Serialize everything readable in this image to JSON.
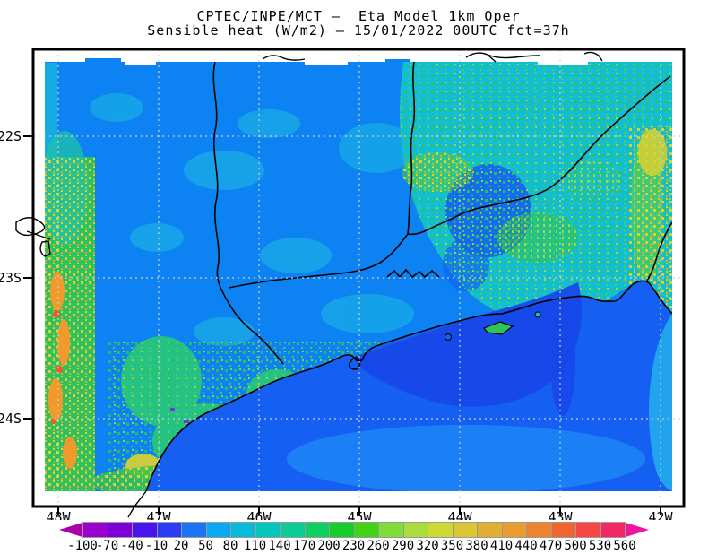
{
  "title": {
    "line1": "CPTEC/INPE/MCT –  Eta Model 1km Oper",
    "line2": "Sensible heat (W/m2) – 15/01/2022 00UTC fct=37h"
  },
  "axes": {
    "lat": [
      {
        "label": "22S"
      },
      {
        "label": "23S"
      },
      {
        "label": "24S"
      }
    ],
    "lon": [
      {
        "label": "48W"
      },
      {
        "label": "47W"
      },
      {
        "label": "46W"
      },
      {
        "label": "45W"
      },
      {
        "label": "44W"
      },
      {
        "label": "43W"
      },
      {
        "label": "42W"
      }
    ]
  },
  "colorbar": {
    "labels": [
      "-100",
      "-70",
      "-40",
      "-10",
      "20",
      "50",
      "80",
      "110",
      "140",
      "170",
      "200",
      "230",
      "260",
      "290",
      "320",
      "350",
      "380",
      "410",
      "440",
      "470",
      "500",
      "530",
      "560"
    ],
    "segment_colors": [
      "#9a00cd",
      "#7d00d9",
      "#4a14ee",
      "#2b3cf5",
      "#1b74f7",
      "#0aa7f2",
      "#06bbd9",
      "#05c6ba",
      "#0bcb96",
      "#0cd05f",
      "#17cc2b",
      "#40d316",
      "#7edd37",
      "#abdc3e",
      "#ccd932",
      "#dcc631",
      "#dfae32",
      "#eb9c31",
      "#ef8430",
      "#f1642e",
      "#f74643",
      "#f32765"
    ],
    "arrow_left_color": "#aa01aa",
    "arrow_right_color": "#f0139b",
    "border_color": "#9a9a9a"
  },
  "map": {
    "colors": {
      "land_base": "#0d82f2",
      "ocean_base": "#1560f2",
      "ocean_dark": "#1847e9",
      "ocean_light": "#1b82f6",
      "ocean_right_band": "#21a3ee",
      "land_teal": "#12bdd6",
      "land_cyan_patch": "#18a7e8",
      "green_band": "#2fc45a",
      "green_blob": "#27c97e",
      "yellow_patch": "#ddd22f",
      "orange_patch": "#ef9a2b",
      "hot_spot": "#f25b2d",
      "valley_blue": "#1365f2",
      "purple_speck": "#7a35d5",
      "coast": "#000000",
      "grid": "#ccd2d8"
    }
  },
  "chart_data": {
    "type": "heatmap",
    "title": "CPTEC/INPE/MCT –  Eta Model 1km Oper",
    "subtitle": "Sensible heat (W/m2) – 15/01/2022 00UTC fct=37h",
    "variable": "Sensible heat",
    "units": "W/m2",
    "model": "Eta Model 1km Oper",
    "institution": "CPTEC/INPE/MCT",
    "valid_datetime": "15/01/2022 00UTC",
    "forecast_hour": "fct=37h",
    "x_tick_labels": [
      "48W",
      "47W",
      "46W",
      "45W",
      "44W",
      "43W",
      "42W"
    ],
    "y_tick_labels": [
      "22S",
      "23S",
      "24S"
    ],
    "grid": true,
    "legend_position": "bottom",
    "levels": [
      -100,
      -70,
      -40,
      -10,
      20,
      50,
      80,
      110,
      140,
      170,
      200,
      230,
      260,
      290,
      320,
      350,
      380,
      410,
      440,
      470,
      500,
      530,
      560
    ],
    "palette": [
      "#9a00cd",
      "#7d00d9",
      "#4a14ee",
      "#2b3cf5",
      "#1b74f7",
      "#0aa7f2",
      "#06bbd9",
      "#05c6ba",
      "#0bcb96",
      "#0cd05f",
      "#17cc2b",
      "#40d316",
      "#7edd37",
      "#abdc3e",
      "#ccd932",
      "#dcc631",
      "#dfae32",
      "#eb9c31",
      "#ef8430",
      "#f1642e",
      "#f74643",
      "#f32765"
    ],
    "regions_read_from_map": [
      {
        "area": "Atlantic ocean southeast of coastline",
        "approx_value_range": [
          20,
          80
        ]
      },
      {
        "area": "ocean band along far right edge (42W)",
        "approx_value_range": [
          50,
          110
        ]
      },
      {
        "area": "inland northwest plateau (blue)",
        "approx_value_range": [
          50,
          110
        ]
      },
      {
        "area": "eastern highlands 44W-42W (cyan/teal with green speckles)",
        "approx_value_range": [
          110,
          260
        ]
      },
      {
        "area": "far-east column near 42W (yellow-green patches)",
        "approx_value_range": [
          230,
          380
        ]
      },
      {
        "area": "western strip near 48W-47.5W (green/yellow/orange)",
        "approx_value_range": [
          170,
          470
        ]
      },
      {
        "area": "southwest interior blobs 47W-46.5W (green with yellow cores)",
        "approx_value_range": [
          170,
          350
        ]
      }
    ]
  }
}
